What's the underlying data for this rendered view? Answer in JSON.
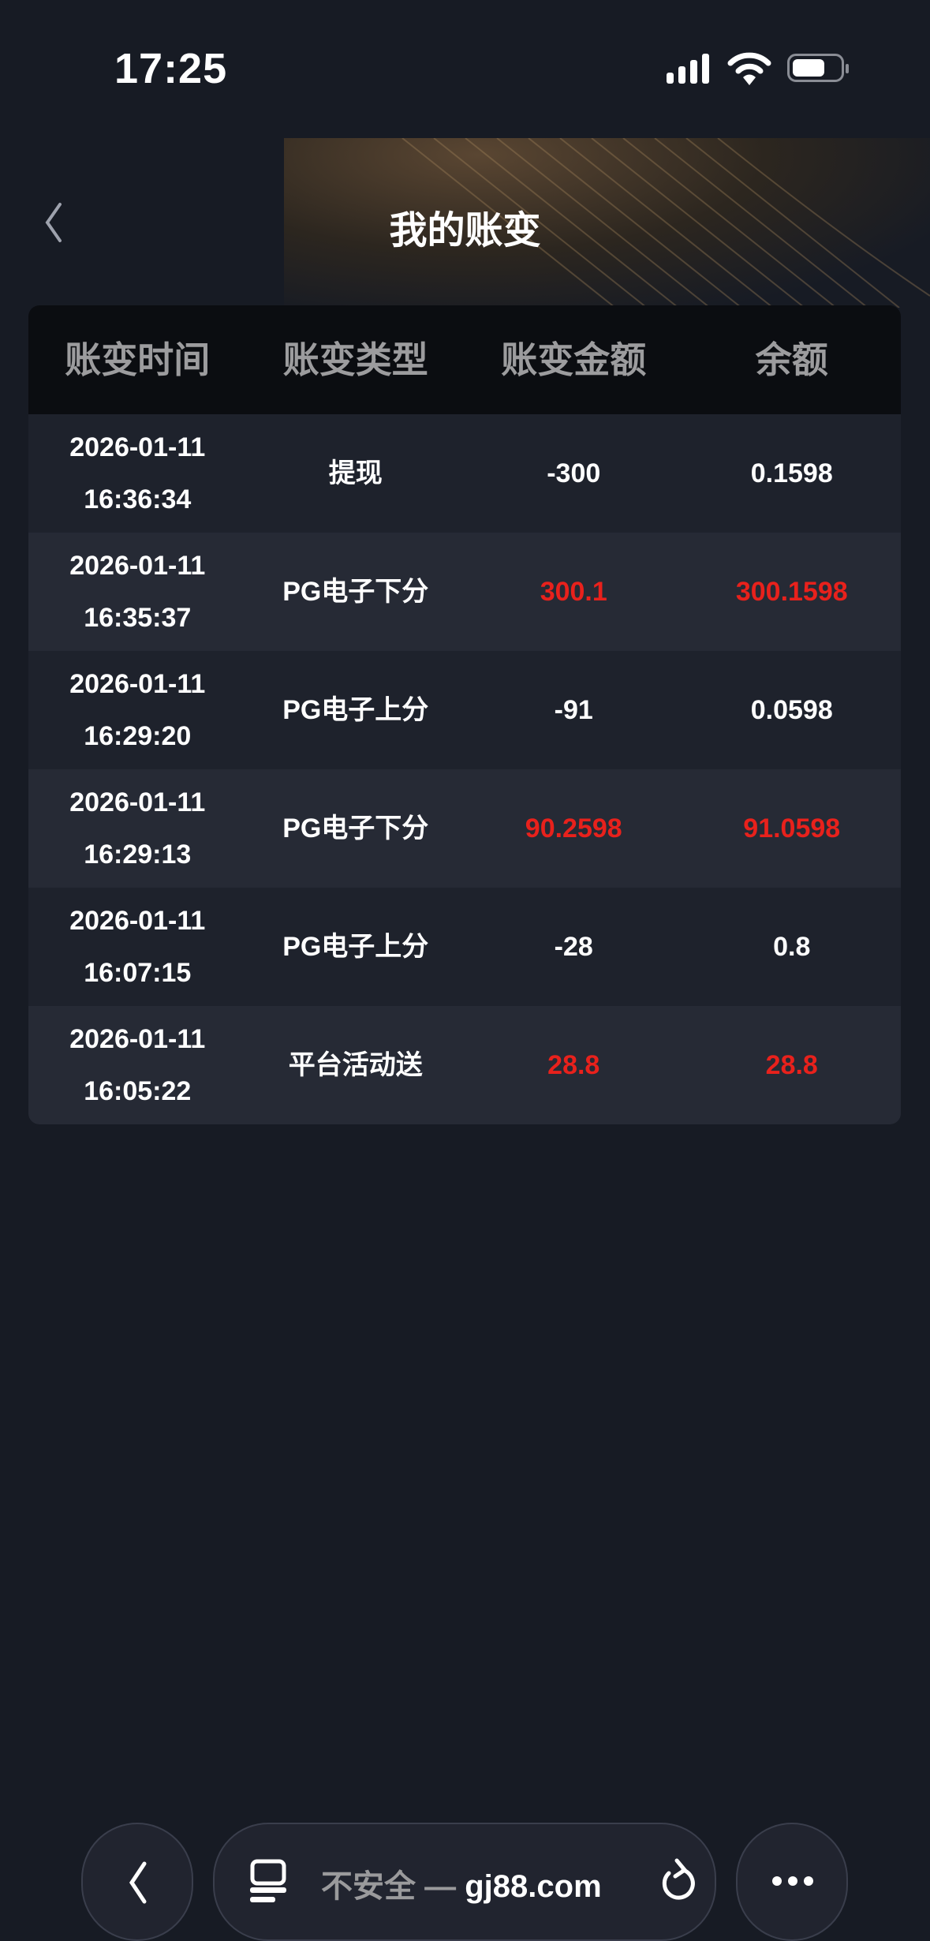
{
  "status_bar": {
    "time": "17:25"
  },
  "header": {
    "title": "我的账变"
  },
  "table": {
    "columns": [
      "账变时间",
      "账变类型",
      "账变金额",
      "余额"
    ],
    "rows": [
      {
        "date": "2026-01-11",
        "time": "16:36:34",
        "type": "提现",
        "amount": "-300",
        "balance": "0.1598",
        "highlight": false
      },
      {
        "date": "2026-01-11",
        "time": "16:35:37",
        "type": "PG电子下分",
        "amount": "300.1",
        "balance": "300.1598",
        "highlight": true
      },
      {
        "date": "2026-01-11",
        "time": "16:29:20",
        "type": "PG电子上分",
        "amount": "-91",
        "balance": "0.0598",
        "highlight": false
      },
      {
        "date": "2026-01-11",
        "time": "16:29:13",
        "type": "PG电子下分",
        "amount": "90.2598",
        "balance": "91.0598",
        "highlight": true
      },
      {
        "date": "2026-01-11",
        "time": "16:07:15",
        "type": "PG电子上分",
        "amount": "-28",
        "balance": "0.8",
        "highlight": false
      },
      {
        "date": "2026-01-11",
        "time": "16:05:22",
        "type": "平台活动送",
        "amount": "28.8",
        "balance": "28.8",
        "highlight": true
      }
    ]
  },
  "browser_bar": {
    "security": "不安全 —",
    "domain": "gj88.com"
  },
  "colors": {
    "positive": "#e8211c",
    "background": "#171b24"
  }
}
